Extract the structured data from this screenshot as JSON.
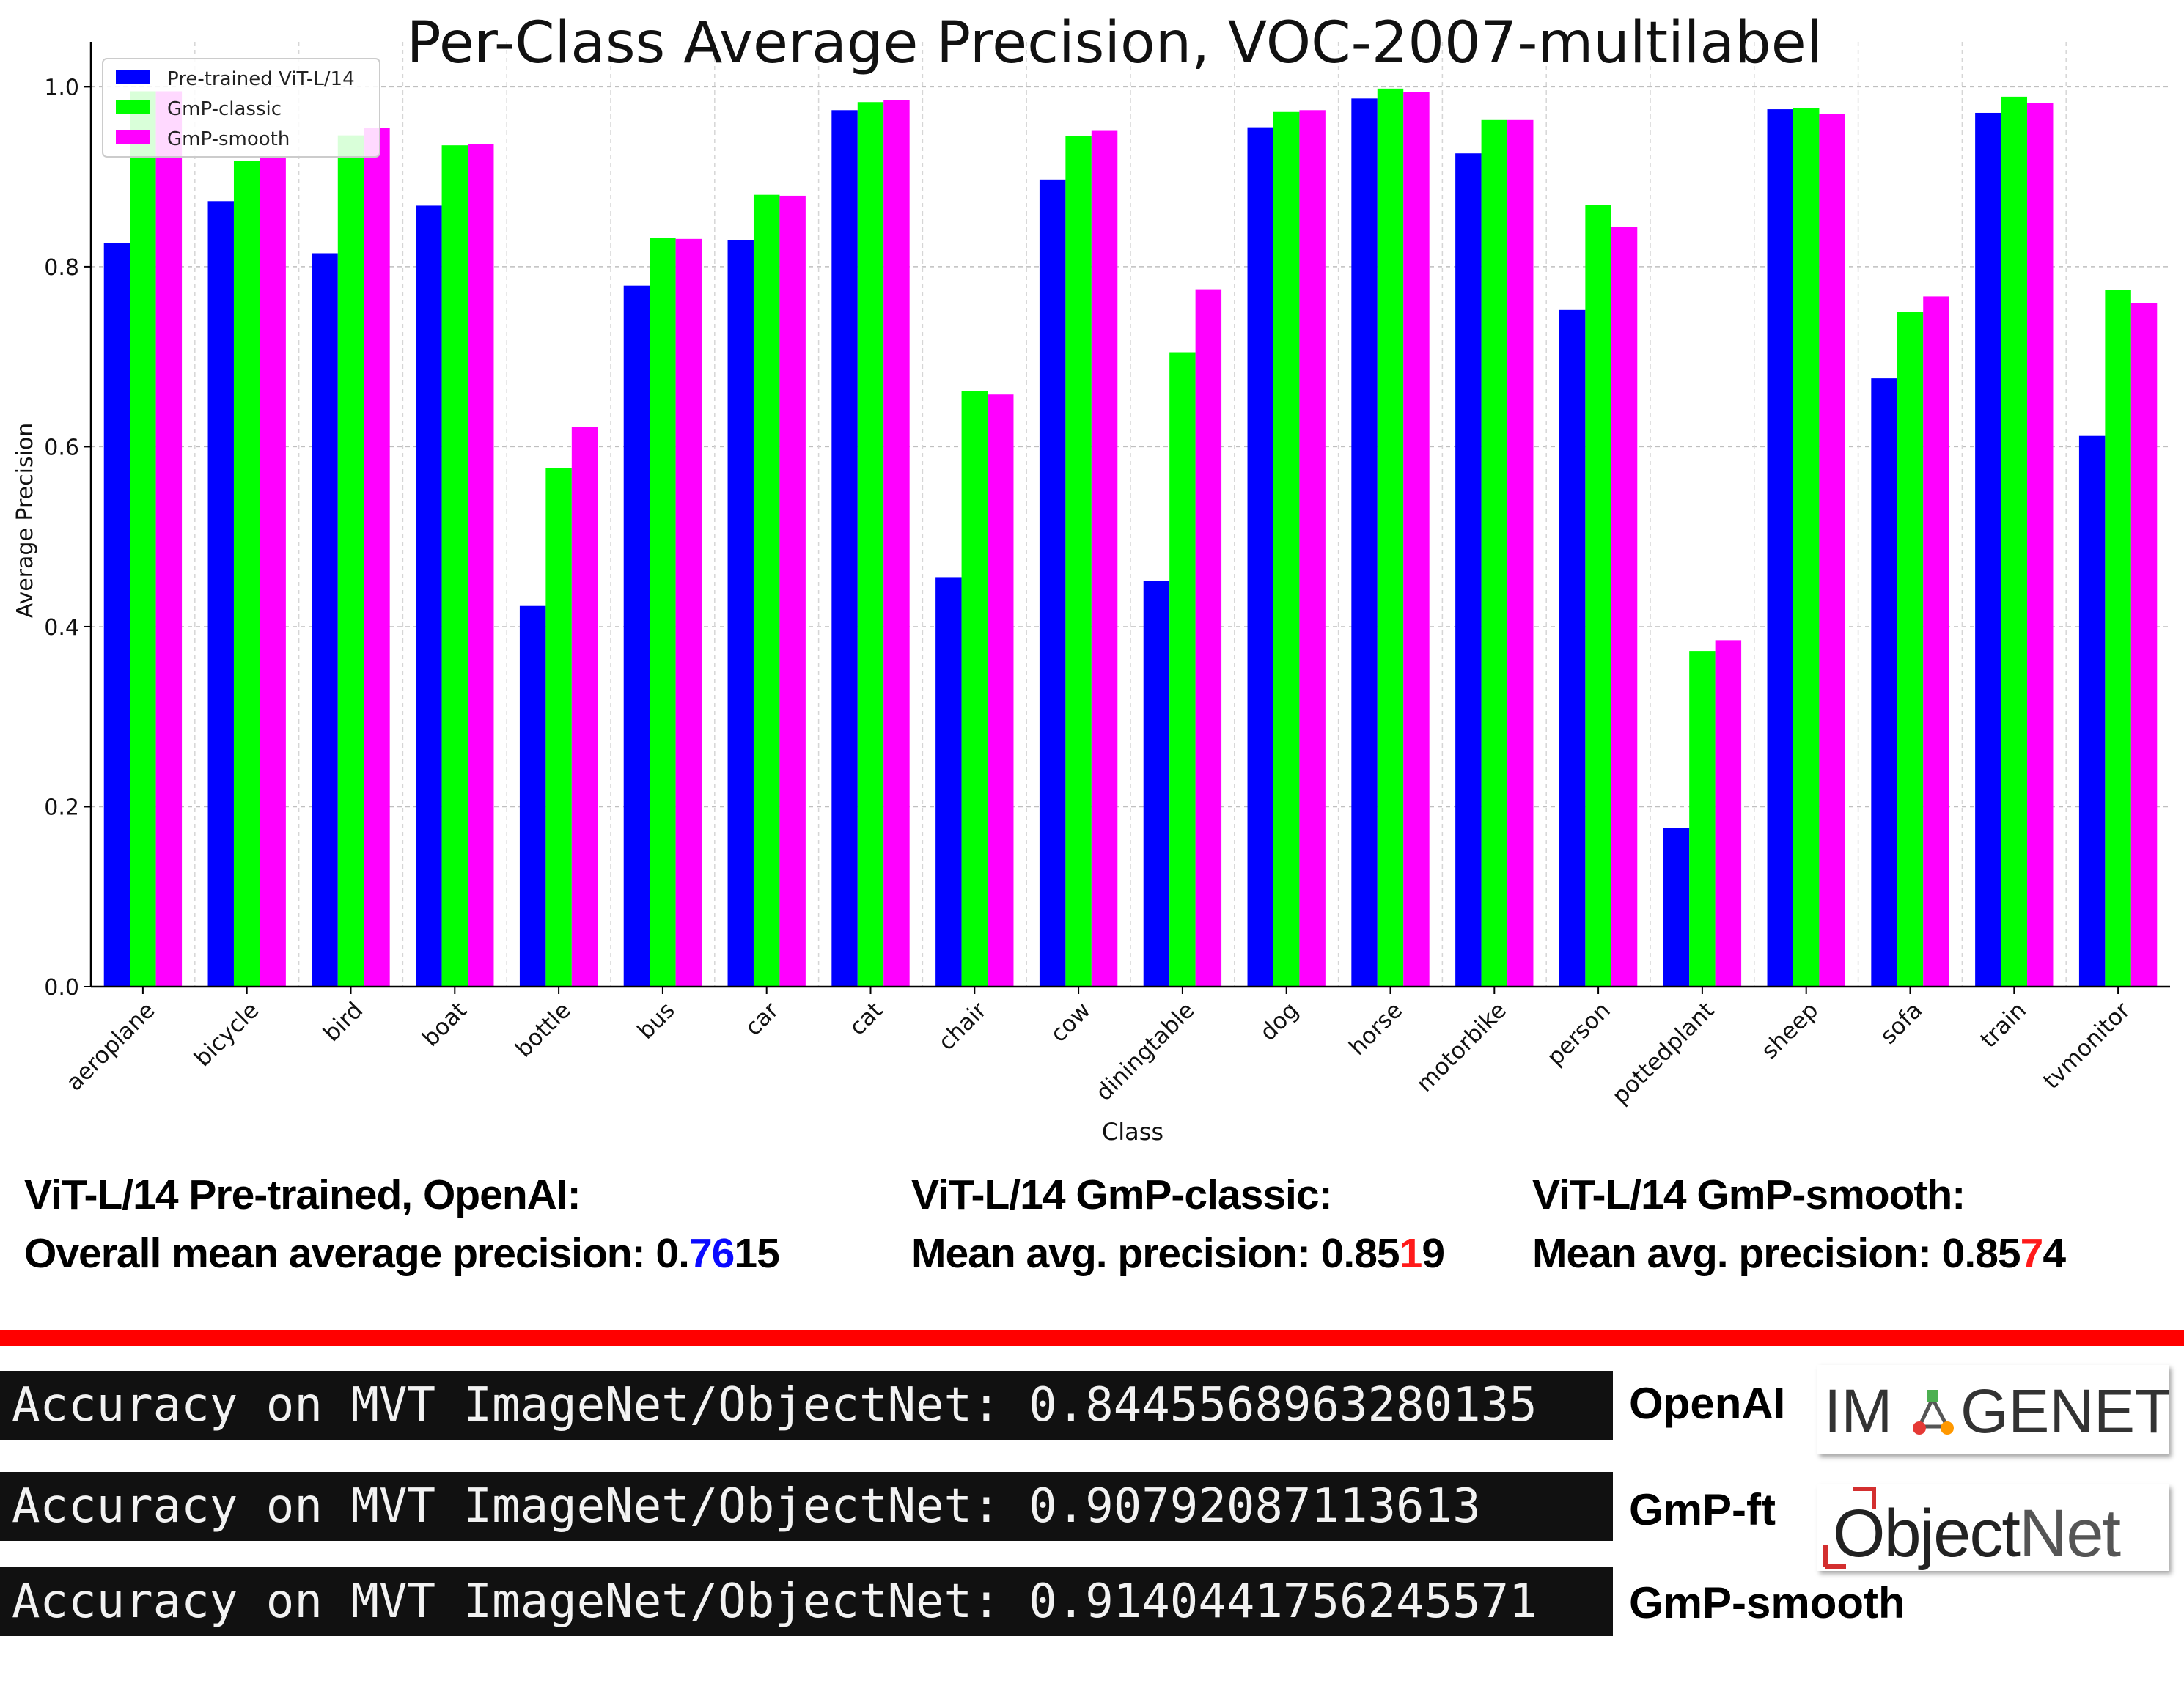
{
  "chart_data": {
    "type": "bar",
    "title": "Per-Class Average Precision, VOC-2007-multilabel",
    "xlabel": "Class",
    "ylabel": "Average Precision",
    "ylim": [
      0,
      1.05
    ],
    "yticks": [
      "0.0",
      "0.2",
      "0.4",
      "0.6",
      "0.8",
      "1.0"
    ],
    "grid": true,
    "legend_position": "top-left",
    "categories": [
      "aeroplane",
      "bicycle",
      "bird",
      "boat",
      "bottle",
      "bus",
      "car",
      "cat",
      "chair",
      "cow",
      "diningtable",
      "dog",
      "horse",
      "motorbike",
      "person",
      "pottedplant",
      "sheep",
      "sofa",
      "train",
      "tvmonitor"
    ],
    "series": [
      {
        "name": "Pre-trained ViT-L/14",
        "color": "#0000ff",
        "values": [
          0.826,
          0.873,
          0.815,
          0.868,
          0.423,
          0.779,
          0.83,
          0.974,
          0.455,
          0.897,
          0.451,
          0.955,
          0.987,
          0.926,
          0.752,
          0.176,
          0.975,
          0.676,
          0.971,
          0.612
        ]
      },
      {
        "name": "GmP-classic",
        "color": "#00ff00",
        "values": [
          0.995,
          0.918,
          0.946,
          0.935,
          0.576,
          0.832,
          0.88,
          0.983,
          0.662,
          0.945,
          0.705,
          0.972,
          0.998,
          0.963,
          0.869,
          0.373,
          0.976,
          0.75,
          0.989,
          0.774
        ]
      },
      {
        "name": "GmP-smooth",
        "color": "#ff00ff",
        "values": [
          0.995,
          0.922,
          0.954,
          0.936,
          0.622,
          0.831,
          0.879,
          0.985,
          0.658,
          0.951,
          0.775,
          0.974,
          0.994,
          0.963,
          0.844,
          0.385,
          0.97,
          0.767,
          0.982,
          0.76
        ]
      }
    ]
  },
  "summaries": [
    {
      "line1": "ViT-L/14 Pre-trained, OpenAI:",
      "prefix": "Overall mean average precision: 0.",
      "highlight": "76",
      "suffix": "15",
      "highlight_color": "#0a0aff"
    },
    {
      "line1": "ViT-L/14 GmP-classic:",
      "prefix": "Mean avg. precision: 0.85",
      "highlight": "1",
      "suffix": "9",
      "highlight_color": "#ff1a1a"
    },
    {
      "line1": "ViT-L/14 GmP-smooth:",
      "prefix": "Mean avg. precision: 0.85",
      "highlight": "7",
      "suffix": "4",
      "highlight_color": "#ff1a1a"
    }
  ],
  "accuracy_rows": [
    {
      "text": "Accuracy on MVT ImageNet/ObjectNet: 0.8445568963280135",
      "label": "OpenAI"
    },
    {
      "text": "Accuracy on MVT ImageNet/ObjectNet: 0.90792087113613",
      "label": "GmP-ft"
    },
    {
      "text": "Accuracy on MVT ImageNet/ObjectNet: 0.9140441756245571",
      "label": "GmP-smooth"
    }
  ],
  "logos": {
    "imagenet": {
      "left": "IM",
      "right": "GENET"
    },
    "objectnet": {
      "left": "Object",
      "right": "Net"
    }
  }
}
